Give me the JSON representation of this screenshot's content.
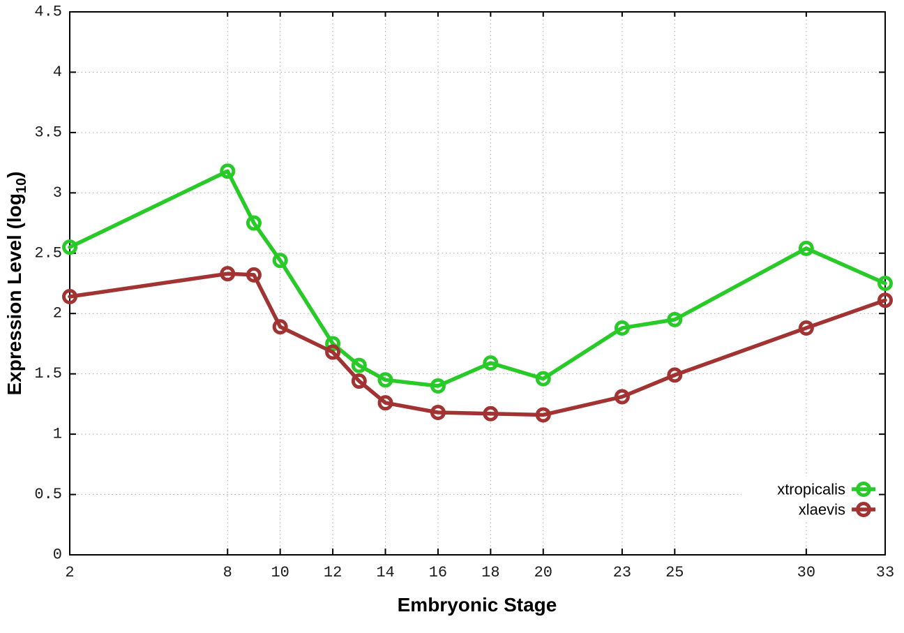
{
  "figure": {
    "background": "#ffffff"
  },
  "chart_data": {
    "type": "line",
    "title": "",
    "xlabel": "Embryonic Stage",
    "ylabel": {
      "prefix": "Expression Level (log",
      "subscript": "10",
      "suffix": ")"
    },
    "x": [
      2,
      8,
      9,
      10,
      12,
      13,
      14,
      16,
      18,
      20,
      23,
      25,
      30,
      33
    ],
    "series": [
      {
        "name": "xtropicalis",
        "color": "#27ca27",
        "values": [
          2.55,
          3.18,
          2.75,
          2.44,
          1.75,
          1.57,
          1.45,
          1.4,
          1.59,
          1.46,
          1.88,
          1.95,
          2.54,
          2.25
        ]
      },
      {
        "name": "xlaevis",
        "color": "#a23333",
        "values": [
          2.14,
          2.33,
          2.32,
          1.89,
          1.68,
          1.44,
          1.26,
          1.18,
          1.17,
          1.16,
          1.31,
          1.49,
          1.88,
          2.11
        ]
      }
    ],
    "xticks": [
      2,
      8,
      10,
      12,
      14,
      16,
      18,
      20,
      23,
      25,
      30,
      33
    ],
    "yticks": [
      0,
      0.5,
      1,
      1.5,
      2,
      2.5,
      3,
      3.5,
      4,
      4.5
    ],
    "xlim": [
      2,
      33
    ],
    "ylim": [
      0,
      4.5
    ],
    "grid": true,
    "legend_position": "bottom-right",
    "marker": "open-circle",
    "axis_color": "#000000",
    "grid_color": "#a8a8a8",
    "tick_label_color": "#1a1a1a"
  }
}
